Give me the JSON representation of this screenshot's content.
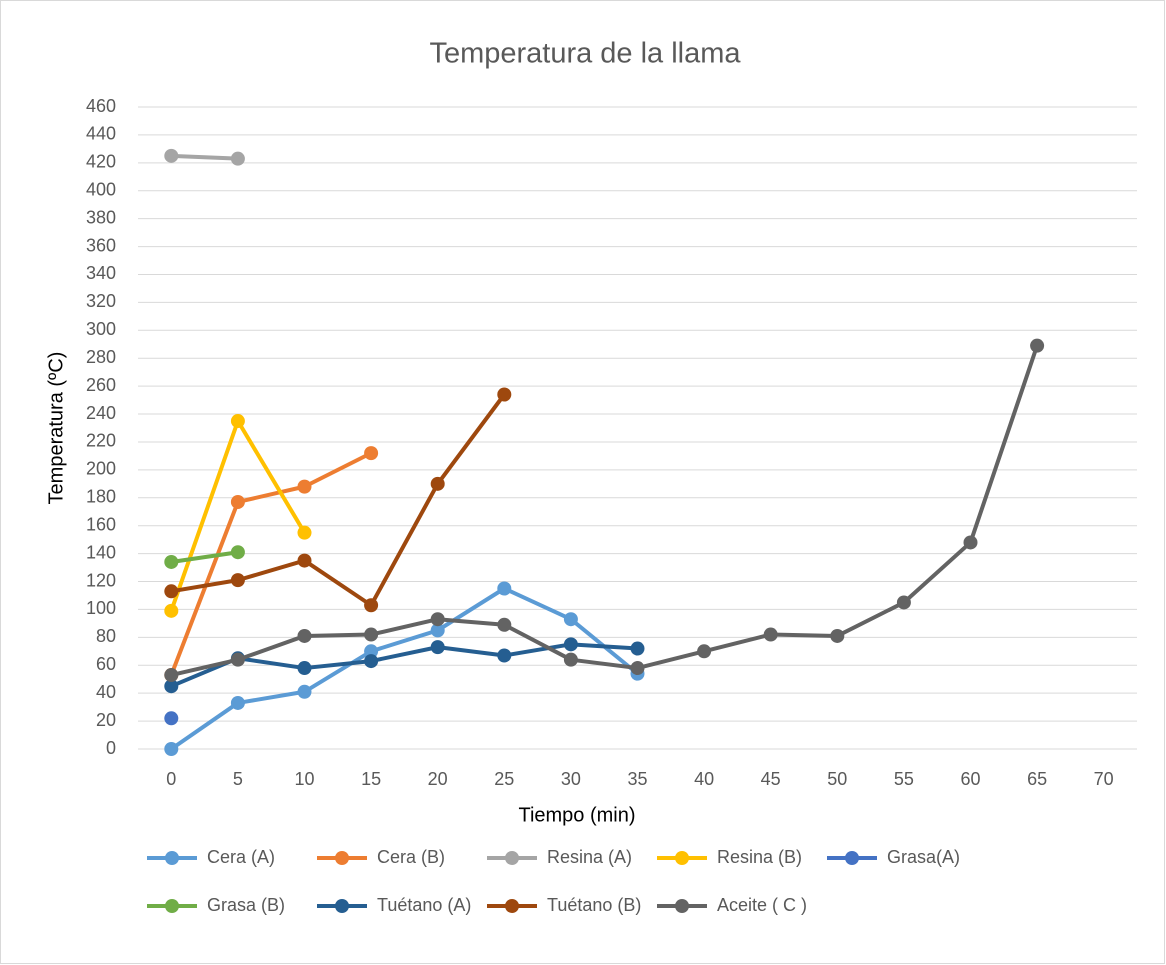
{
  "chart_data": {
    "type": "line",
    "title": "Temperatura de la llama",
    "x_label": "Tiempo (min)",
    "y_label": "Temperatura (ºC)",
    "categories": [
      "0",
      "5",
      "10",
      "15",
      "20",
      "25",
      "30",
      "35",
      "40",
      "45",
      "50",
      "55",
      "60",
      "65",
      "70"
    ],
    "ylim": [
      0,
      460
    ],
    "yticks": [
      0,
      20,
      40,
      60,
      80,
      100,
      120,
      140,
      160,
      180,
      200,
      220,
      240,
      260,
      280,
      300,
      320,
      340,
      360,
      380,
      400,
      420,
      440,
      460
    ],
    "grid": true,
    "legend": "bottom",
    "series": [
      {
        "name": "Cera (A)",
        "color": "#5b9bd5",
        "values": [
          0,
          33,
          41,
          70,
          85,
          115,
          93,
          54,
          null,
          null,
          null,
          null,
          null,
          null,
          null
        ]
      },
      {
        "name": "Cera (B)",
        "color": "#ed7d31",
        "values": [
          53,
          177,
          188,
          212,
          null,
          null,
          null,
          null,
          null,
          null,
          null,
          null,
          null,
          null,
          null
        ]
      },
      {
        "name": "Resina (A)",
        "color": "#a5a5a5",
        "values": [
          425,
          423,
          null,
          null,
          null,
          null,
          null,
          null,
          null,
          null,
          null,
          null,
          null,
          null,
          null
        ]
      },
      {
        "name": "Resina (B)",
        "color": "#ffc000",
        "values": [
          99,
          235,
          155,
          null,
          null,
          null,
          null,
          null,
          null,
          null,
          null,
          null,
          null,
          null,
          null
        ]
      },
      {
        "name": "Grasa(A)",
        "color": "#4472c4",
        "values": [
          22,
          null,
          null,
          null,
          null,
          null,
          null,
          null,
          null,
          null,
          null,
          null,
          null,
          null,
          null
        ]
      },
      {
        "name": "Grasa (B)",
        "color": "#70ad47",
        "values": [
          134,
          141,
          null,
          null,
          null,
          null,
          null,
          null,
          null,
          null,
          null,
          null,
          null,
          null,
          null
        ]
      },
      {
        "name": "Tuétano (A)",
        "color": "#255e91",
        "values": [
          45,
          65,
          58,
          63,
          73,
          67,
          75,
          72,
          null,
          null,
          null,
          null,
          null,
          null,
          null
        ]
      },
      {
        "name": "Tuétano (B)",
        "color": "#9e480e",
        "values": [
          113,
          121,
          135,
          103,
          190,
          254,
          null,
          null,
          null,
          null,
          null,
          null,
          null,
          null,
          null
        ]
      },
      {
        "name": "Aceite ( C )",
        "color": "#636363",
        "values": [
          53,
          64,
          81,
          82,
          93,
          89,
          64,
          58,
          70,
          82,
          81,
          105,
          148,
          289,
          null
        ]
      }
    ]
  }
}
